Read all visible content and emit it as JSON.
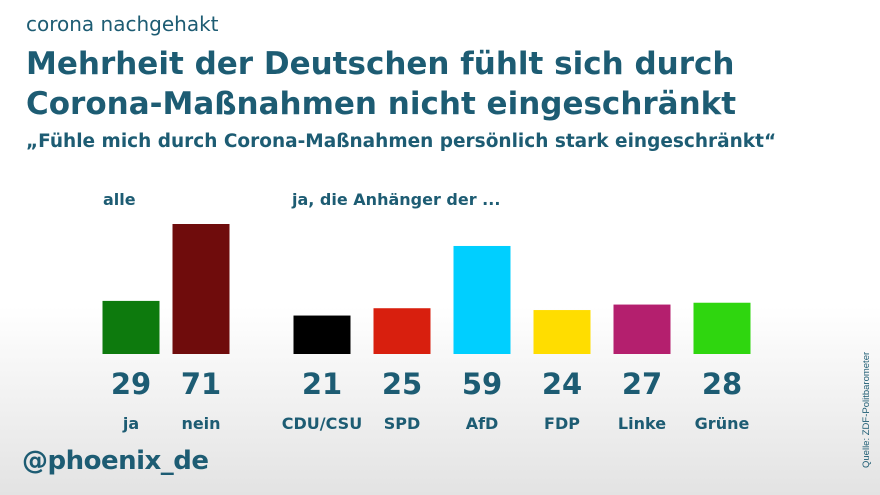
{
  "header": {
    "kicker": "corona nachgehakt",
    "title": "Mehrheit der Deutschen fühlt sich durch Corona-Maßnahmen nicht eingeschränkt",
    "subtitle": "„Fühle mich durch Corona-Maßnahmen persönlich stark eingeschränkt“"
  },
  "groups": {
    "all_label": "alle",
    "party_label": "ja, die Anhänger der ..."
  },
  "footer": {
    "brand": "@phoenix_de",
    "source": "Quelle: ZDF-Politbarometer"
  },
  "chart_data": {
    "type": "bar",
    "categories": [
      "ja",
      "nein",
      "CDU/CSU",
      "SPD",
      "AfD",
      "FDP",
      "Linke",
      "Grüne"
    ],
    "values": [
      29,
      71,
      21,
      25,
      59,
      24,
      27,
      28
    ],
    "colors": [
      "#0d7a0d",
      "#6f0c0c",
      "#000000",
      "#d81f0e",
      "#00cfff",
      "#ffdd00",
      "#b41f6e",
      "#2fd60f"
    ],
    "ylim": [
      0,
      75
    ],
    "title": "",
    "xlabel": "",
    "ylabel": ""
  }
}
